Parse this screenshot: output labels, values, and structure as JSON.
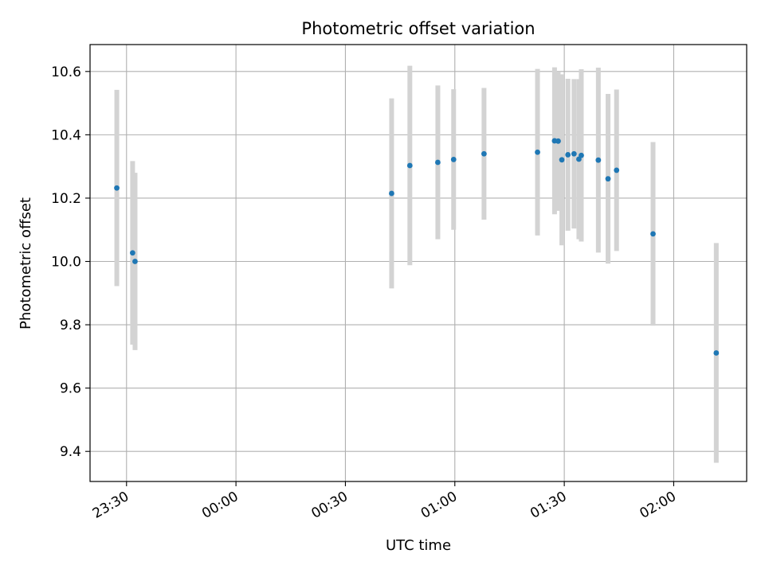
{
  "chart_data": {
    "type": "scatter",
    "title": "Photometric offset variation",
    "xlabel": "UTC time",
    "ylabel": "Photometric offset",
    "x_axis_type": "time",
    "xlim": [
      "23:20",
      "02:20"
    ],
    "ylim": [
      9.305,
      10.685
    ],
    "x_ticks": [
      {
        "t": "23:30",
        "label": "23:30"
      },
      {
        "t": "00:00",
        "label": "00:00"
      },
      {
        "t": "00:30",
        "label": "00:30"
      },
      {
        "t": "01:00",
        "label": "01:00"
      },
      {
        "t": "01:30",
        "label": "01:30"
      },
      {
        "t": "02:00",
        "label": "02:00"
      }
    ],
    "y_ticks": [
      9.4,
      9.6,
      9.8,
      10.0,
      10.2,
      10.4,
      10.6
    ],
    "y_tick_labels": [
      "9.4",
      "9.6",
      "9.8",
      "10.0",
      "10.2",
      "10.4",
      "10.6"
    ],
    "grid": true,
    "colors": {
      "point": "#1f77b4",
      "errorbar": "#d3d3d3",
      "grid": "#b0b0b0"
    },
    "points": [
      {
        "t": "23:27:20",
        "y": 10.232,
        "yerr": 0.31
      },
      {
        "t": "23:31:40",
        "y": 10.027,
        "yerr": 0.29
      },
      {
        "t": "23:32:20",
        "y": 10.0,
        "yerr": 0.28
      },
      {
        "t": "00:42:40",
        "y": 10.215,
        "yerr": 0.3
      },
      {
        "t": "00:47:40",
        "y": 10.303,
        "yerr": 0.315
      },
      {
        "t": "00:55:20",
        "y": 10.313,
        "yerr": 0.243
      },
      {
        "t": "00:59:40",
        "y": 10.322,
        "yerr": 0.222
      },
      {
        "t": "01:08:00",
        "y": 10.34,
        "yerr": 0.208
      },
      {
        "t": "01:22:40",
        "y": 10.345,
        "yerr": 0.263
      },
      {
        "t": "01:27:20",
        "y": 10.381,
        "yerr": 0.232
      },
      {
        "t": "01:28:20",
        "y": 10.38,
        "yerr": 0.22
      },
      {
        "t": "01:29:20",
        "y": 10.321,
        "yerr": 0.27
      },
      {
        "t": "01:31:00",
        "y": 10.337,
        "yerr": 0.24
      },
      {
        "t": "01:32:40",
        "y": 10.34,
        "yerr": 0.236
      },
      {
        "t": "01:34:00",
        "y": 10.323,
        "yerr": 0.253
      },
      {
        "t": "01:34:40",
        "y": 10.335,
        "yerr": 0.272
      },
      {
        "t": "01:39:20",
        "y": 10.32,
        "yerr": 0.292
      },
      {
        "t": "01:42:00",
        "y": 10.261,
        "yerr": 0.268
      },
      {
        "t": "01:44:20",
        "y": 10.288,
        "yerr": 0.255
      },
      {
        "t": "01:54:20",
        "y": 10.087,
        "yerr": 0.29
      },
      {
        "t": "02:11:40",
        "y": 9.711,
        "yerr": 0.347
      }
    ]
  }
}
